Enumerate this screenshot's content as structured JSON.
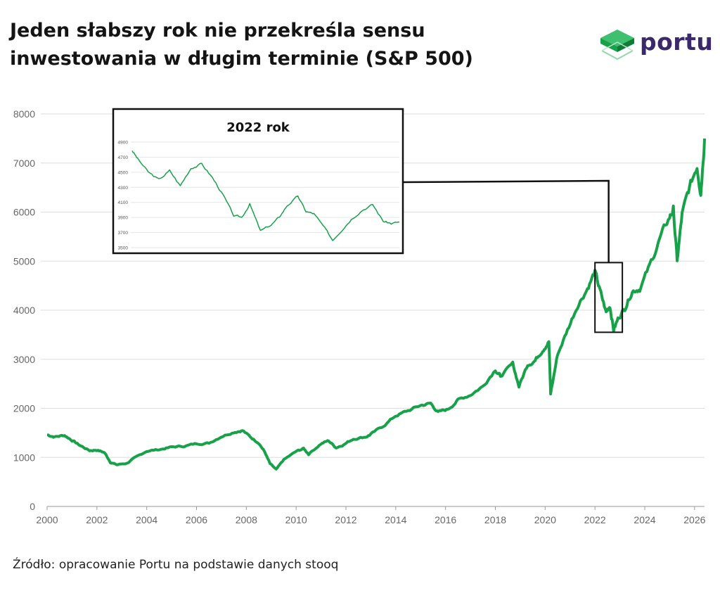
{
  "header": {
    "title_line1": "Jeden słabszy rok nie przekreśla sensu",
    "title_line2": "inwestowania w długim terminie (S&P 500)"
  },
  "logo": {
    "text": "portu",
    "icon": "cube-logo-icon",
    "color": "#3b2a6b",
    "accent": "#1fa653"
  },
  "footer": {
    "source": "Źródło: opracowanie Portu na podstawie danych stooq"
  },
  "colors": {
    "line": "#17a24a",
    "grid": "#dddddd",
    "axis_text": "#666666"
  },
  "chart_data": [
    {
      "type": "line",
      "title": "",
      "xlabel": "",
      "ylabel": "",
      "xlim": [
        2000,
        2026.4
      ],
      "ylim": [
        0,
        8000
      ],
      "x_ticks": [
        "2000",
        "2002",
        "2004",
        "2006",
        "2008",
        "2010",
        "2012",
        "2014",
        "2016",
        "2018",
        "2020",
        "2022",
        "2024",
        "2026"
      ],
      "y_ticks": [
        "0",
        "1000",
        "2000",
        "3000",
        "4000",
        "5000",
        "6000",
        "7000",
        "8000"
      ],
      "grid": "horizontal",
      "highlight": {
        "x_range": [
          2022.0,
          2023.1
        ],
        "y_range": [
          3550,
          4970
        ]
      },
      "series": [
        {
          "x": [
            2000.0,
            2000.3,
            2000.7,
            2001.0,
            2001.3,
            2001.7,
            2002.0,
            2002.3,
            2002.55,
            2002.8,
            2003.2,
            2003.5,
            2004.0,
            2004.5,
            2005.0,
            2005.5,
            2006.0,
            2006.5,
            2007.0,
            2007.5,
            2007.85,
            2008.2,
            2008.5,
            2008.75,
            2008.95,
            2009.2,
            2009.5,
            2010.0,
            2010.3,
            2010.5,
            2011.0,
            2011.3,
            2011.6,
            2011.9,
            2012.3,
            2012.8,
            2013.0,
            2013.5,
            2014.0,
            2014.5,
            2015.0,
            2015.4,
            2015.7,
            2016.1,
            2016.5,
            2017.0,
            2017.5,
            2018.0,
            2018.2,
            2018.7,
            2018.95,
            2019.3,
            2019.6,
            2019.9,
            2020.15,
            2020.22,
            2020.5,
            2020.9,
            2021.3,
            2021.7,
            2022.0,
            2022.2,
            2022.45,
            2022.6,
            2022.75,
            2022.95,
            2023.2,
            2023.5,
            2023.8,
            2024.2,
            2024.6,
            2025.0,
            2025.15,
            2025.3,
            2025.5,
            2025.8,
            2026.1,
            2026.25,
            2026.4
          ],
          "y": [
            1460,
            1420,
            1450,
            1350,
            1250,
            1140,
            1150,
            1100,
            900,
            850,
            880,
            980,
            1130,
            1160,
            1210,
            1230,
            1280,
            1290,
            1430,
            1520,
            1550,
            1400,
            1300,
            1100,
            870,
            750,
            950,
            1120,
            1180,
            1070,
            1280,
            1340,
            1200,
            1260,
            1380,
            1420,
            1470,
            1640,
            1850,
            1950,
            2060,
            2100,
            1920,
            1980,
            2170,
            2280,
            2450,
            2800,
            2650,
            2900,
            2450,
            2900,
            2980,
            3200,
            3360,
            2300,
            3100,
            3600,
            4100,
            4450,
            4780,
            4400,
            3950,
            4100,
            3600,
            3850,
            4050,
            4400,
            4450,
            4900,
            5450,
            5900,
            6050,
            5000,
            5950,
            6500,
            6950,
            6400,
            7500
          ]
        }
      ]
    },
    {
      "type": "line",
      "title": "2022 rok",
      "xlabel": "",
      "ylabel": "",
      "ylim": [
        3500,
        4900
      ],
      "y_ticks": [
        "3500",
        "3700",
        "3900",
        "4100",
        "4300",
        "4500",
        "4700",
        "4900"
      ],
      "grid": "horizontal",
      "series": [
        {
          "x": [
            0,
            0.02,
            0.06,
            0.1,
            0.14,
            0.18,
            0.22,
            0.26,
            0.3,
            0.34,
            0.38,
            0.41,
            0.44,
            0.48,
            0.52,
            0.55,
            0.58,
            0.62,
            0.65,
            0.68,
            0.72,
            0.75,
            0.78,
            0.82,
            0.86,
            0.9,
            0.94,
            0.97,
            1.0
          ],
          "y": [
            4790,
            4680,
            4500,
            4400,
            4520,
            4320,
            4560,
            4610,
            4430,
            4200,
            3920,
            3900,
            4080,
            3720,
            3800,
            3900,
            4060,
            4180,
            3980,
            3950,
            3760,
            3600,
            3720,
            3880,
            4000,
            4070,
            3850,
            3820,
            3840
          ]
        }
      ]
    }
  ]
}
